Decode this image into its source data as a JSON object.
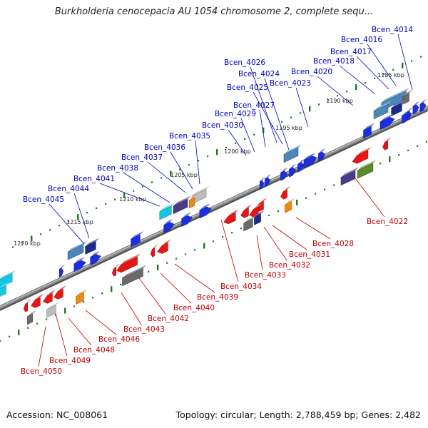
{
  "title": "Burkholderia cenocepacia AU 1054 chromosome 2, complete sequ...",
  "footer": {
    "accession": "Accession: NC_008061",
    "summary": "Topology: circular; Length: 2,788,459 bp; Genes: 2,482"
  },
  "colors": {
    "backbone": "#8c8c8c",
    "tick": "#1e7a1e",
    "label_forward": "#0000c0",
    "label_reverse": "#c00000",
    "gene_blue": "#1a2fe0",
    "gene_red": "#e81616",
    "gene_steel": "#4a86b8",
    "gene_navy": "#1c2a8c",
    "gene_purple": "#4a3a8a",
    "gene_gray": "#6a6a6a",
    "gene_silver": "#bdbdbd",
    "gene_cyan": "#12c9e4",
    "gene_orange": "#f08a10",
    "gene_olive": "#5f8a28"
  },
  "kbp_labels": [
    "1185 kbp",
    "1190 kbp",
    "1195 kbp",
    "1200 kbp",
    "1205 kbp",
    "1210 kbp",
    "1215 kbp",
    "1220 kbp"
  ],
  "forward_genes": [
    "Bcen_4014",
    "Bcen_4016",
    "Bcen_4017",
    "Bcen_4018",
    "Bcen_4020",
    "Bcen_4023",
    "Bcen_4024",
    "Bcen_4025",
    "Bcen_4026",
    "Bcen_4027",
    "Bcen_4029",
    "Bcen_4030",
    "Bcen_4035",
    "Bcen_4036",
    "Bcen_4037",
    "Bcen_4038",
    "Bcen_4041",
    "Bcen_4044",
    "Bcen_4045"
  ],
  "reverse_genes": [
    "Bcen_4022",
    "Bcen_4028",
    "Bcen_4031",
    "Bcen_4032",
    "Bcen_4033",
    "Bcen_4034",
    "Bcen_4039",
    "Bcen_4040",
    "Bcen_4042",
    "Bcen_4043",
    "Bcen_4046",
    "Bcen_4048",
    "Bcen_4049",
    "Bcen_4050"
  ]
}
